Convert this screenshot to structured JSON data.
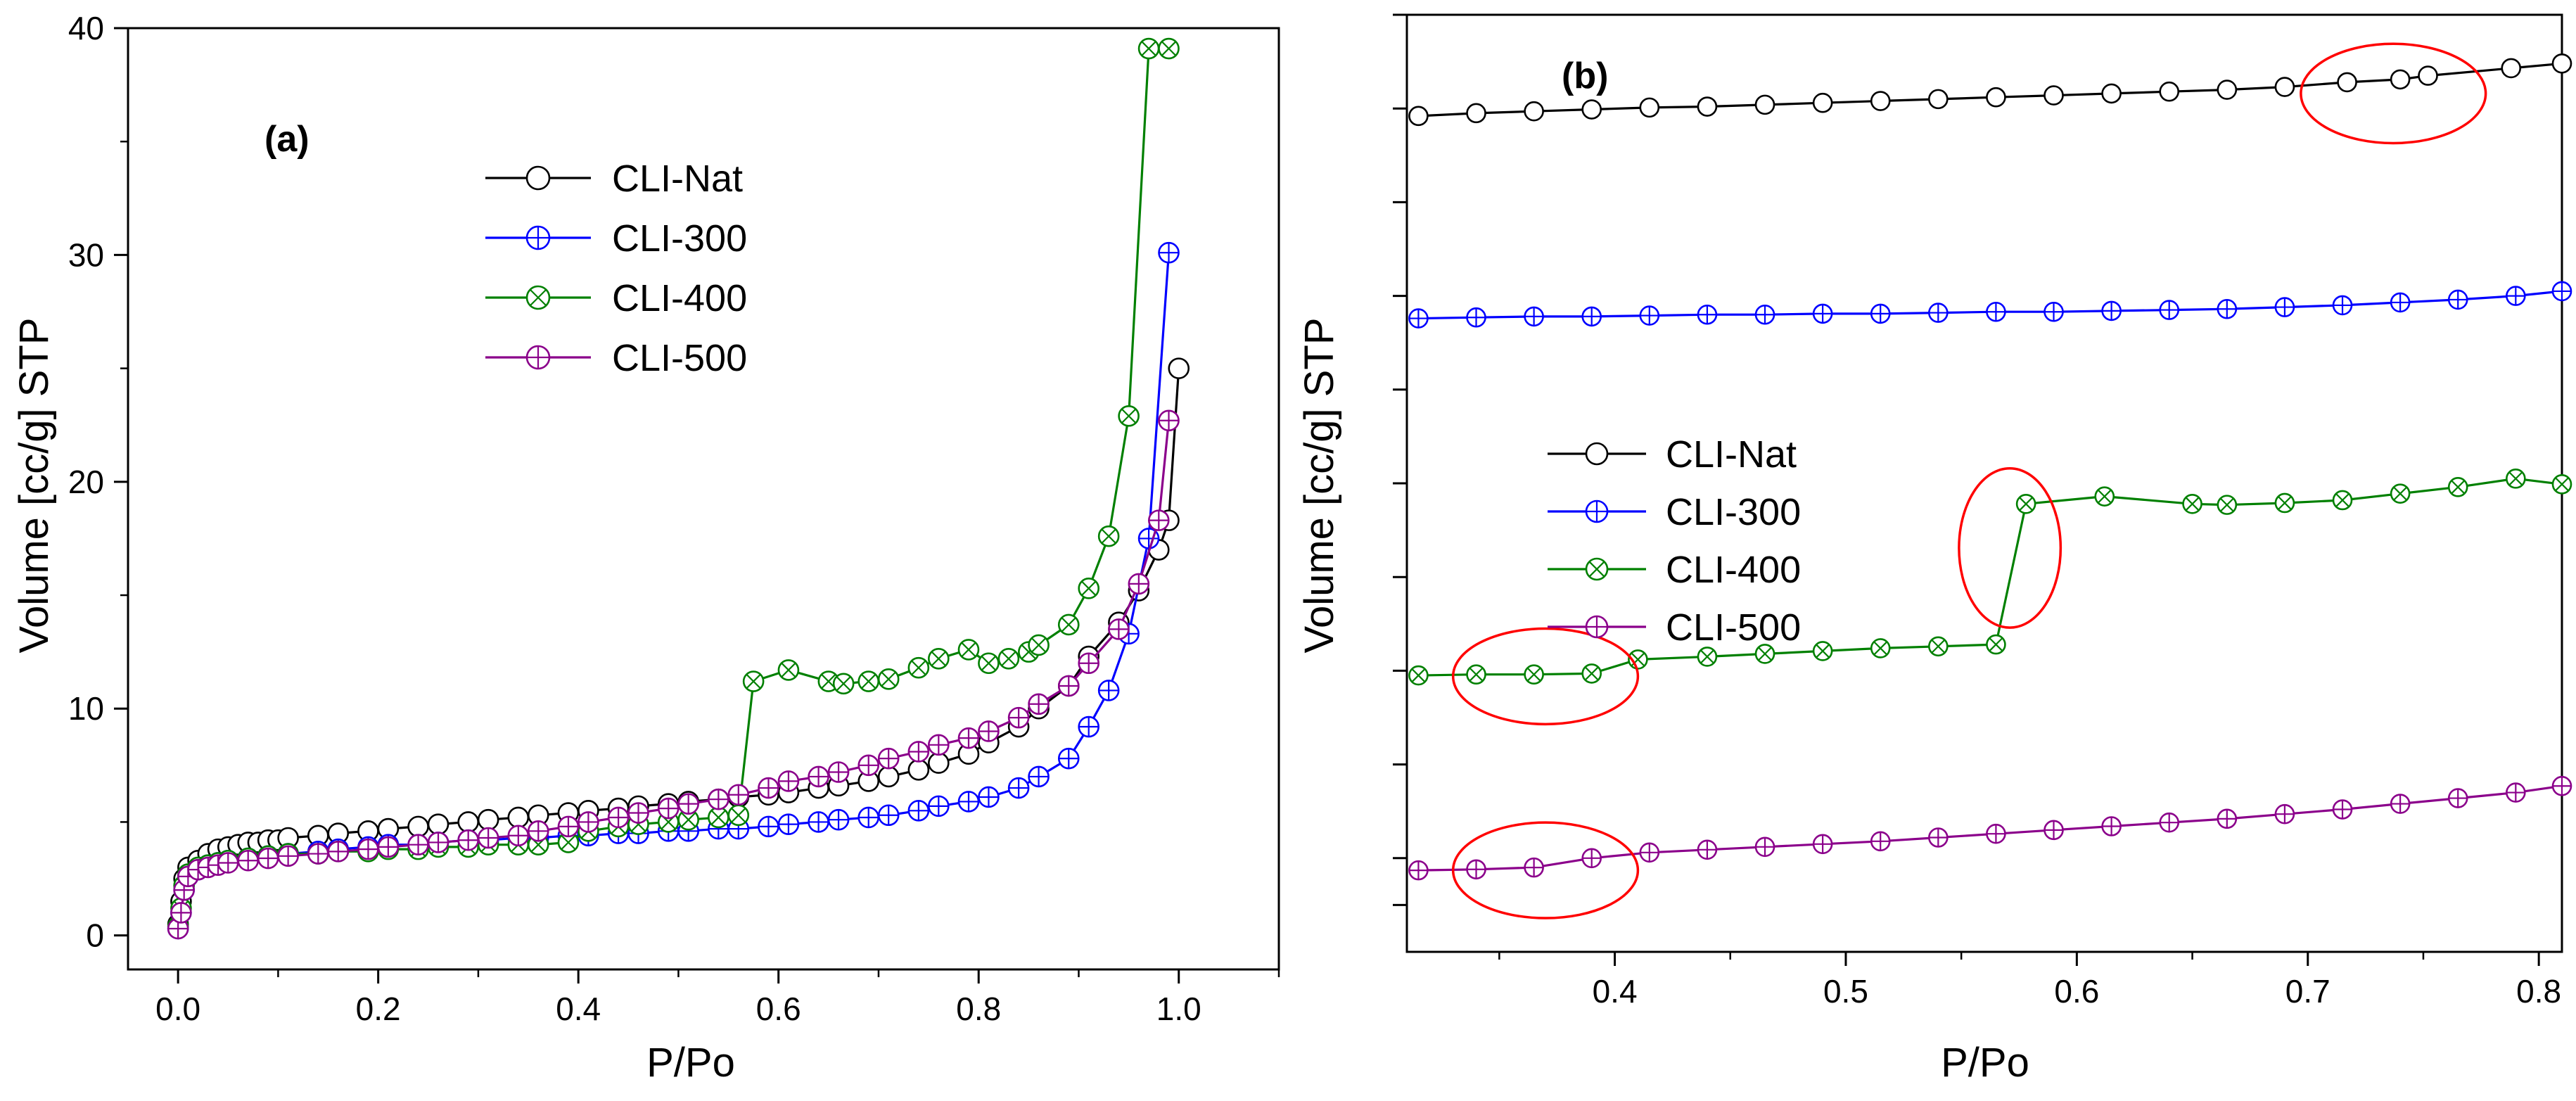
{
  "chart_data": [
    {
      "id": "a",
      "type": "line",
      "panel_label": "(a)",
      "xlabel": "P/Po",
      "ylabel": "Volume [cc/g] STP",
      "xlim": [
        -0.05,
        1.1
      ],
      "ylim": [
        -1.5,
        40
      ],
      "x_ticks": [
        0.0,
        0.2,
        0.4,
        0.6,
        0.8,
        1.0
      ],
      "x_tick_labels": [
        "0.0",
        "0.2",
        "0.4",
        "0.6",
        "0.8",
        "1.0"
      ],
      "y_ticks": [
        0,
        10,
        20,
        30,
        40
      ],
      "y_tick_labels": [
        "0",
        "10",
        "20",
        "30",
        "40"
      ],
      "grid": false,
      "legend_position": "upper-center",
      "series": [
        {
          "name": "CLI-Nat",
          "color": "#000000",
          "marker": "circle",
          "x": [
            0.0,
            0.003,
            0.006,
            0.01,
            0.02,
            0.03,
            0.04,
            0.05,
            0.06,
            0.07,
            0.08,
            0.09,
            0.1,
            0.11,
            0.14,
            0.16,
            0.19,
            0.21,
            0.24,
            0.26,
            0.29,
            0.31,
            0.34,
            0.36,
            0.39,
            0.41,
            0.44,
            0.46,
            0.49,
            0.51,
            0.54,
            0.56,
            0.59,
            0.61,
            0.64,
            0.66,
            0.69,
            0.71,
            0.74,
            0.76,
            0.79,
            0.81,
            0.84,
            0.86,
            0.89,
            0.91,
            0.94,
            0.96,
            0.98,
            0.99,
            1.0
          ],
          "y": [
            0.5,
            1.5,
            2.5,
            3.0,
            3.3,
            3.6,
            3.8,
            3.9,
            4.0,
            4.1,
            4.1,
            4.2,
            4.2,
            4.3,
            4.4,
            4.5,
            4.6,
            4.7,
            4.8,
            4.9,
            5.0,
            5.1,
            5.2,
            5.3,
            5.4,
            5.5,
            5.6,
            5.7,
            5.8,
            5.9,
            6.0,
            6.1,
            6.2,
            6.3,
            6.5,
            6.6,
            6.8,
            7.0,
            7.3,
            7.6,
            8.0,
            8.5,
            9.2,
            10.0,
            11.0,
            12.3,
            13.8,
            15.2,
            17.0,
            18.3,
            25.0
          ]
        },
        {
          "name": "CLI-300",
          "color": "#0000ff",
          "marker": "circle-cross",
          "x": [
            0.0,
            0.003,
            0.006,
            0.01,
            0.02,
            0.03,
            0.04,
            0.05,
            0.07,
            0.09,
            0.11,
            0.14,
            0.16,
            0.19,
            0.21,
            0.24,
            0.26,
            0.29,
            0.31,
            0.34,
            0.36,
            0.39,
            0.41,
            0.44,
            0.46,
            0.49,
            0.51,
            0.54,
            0.56,
            0.59,
            0.61,
            0.64,
            0.66,
            0.69,
            0.71,
            0.74,
            0.76,
            0.79,
            0.81,
            0.84,
            0.86,
            0.89,
            0.91,
            0.93,
            0.95,
            0.97,
            0.99
          ],
          "y": [
            0.3,
            1.0,
            2.0,
            2.6,
            2.9,
            3.1,
            3.2,
            3.3,
            3.4,
            3.5,
            3.6,
            3.7,
            3.8,
            3.9,
            4.0,
            4.0,
            4.1,
            4.2,
            4.2,
            4.3,
            4.3,
            4.4,
            4.4,
            4.5,
            4.5,
            4.6,
            4.6,
            4.7,
            4.7,
            4.8,
            4.9,
            5.0,
            5.1,
            5.2,
            5.3,
            5.5,
            5.7,
            5.9,
            6.1,
            6.5,
            7.0,
            7.8,
            9.2,
            10.8,
            13.3,
            17.5,
            30.1
          ]
        },
        {
          "name": "CLI-400",
          "color": "#008000",
          "marker": "circle-x",
          "x": [
            0.0,
            0.003,
            0.006,
            0.01,
            0.02,
            0.03,
            0.04,
            0.05,
            0.07,
            0.09,
            0.11,
            0.14,
            0.16,
            0.19,
            0.21,
            0.24,
            0.26,
            0.29,
            0.31,
            0.34,
            0.36,
            0.39,
            0.41,
            0.44,
            0.46,
            0.49,
            0.51,
            0.54,
            0.56,
            0.575,
            0.61,
            0.65,
            0.665,
            0.69,
            0.71,
            0.74,
            0.76,
            0.79,
            0.81,
            0.83,
            0.85,
            0.86,
            0.89,
            0.91,
            0.93,
            0.95,
            0.97,
            0.99
          ],
          "y": [
            0.4,
            1.2,
            2.2,
            2.7,
            3.0,
            3.1,
            3.2,
            3.3,
            3.4,
            3.5,
            3.6,
            3.6,
            3.7,
            3.7,
            3.8,
            3.8,
            3.9,
            3.9,
            4.0,
            4.0,
            4.0,
            4.1,
            4.6,
            4.8,
            4.9,
            5.0,
            5.1,
            5.2,
            5.3,
            11.2,
            11.7,
            11.2,
            11.1,
            11.2,
            11.3,
            11.8,
            12.2,
            12.6,
            12.0,
            12.2,
            12.5,
            12.8,
            13.7,
            15.3,
            17.6,
            22.9,
            39.1,
            39.1
          ]
        },
        {
          "name": "CLI-500",
          "color": "#8b008b",
          "marker": "circle-cross",
          "x": [
            0.0,
            0.003,
            0.006,
            0.01,
            0.02,
            0.03,
            0.04,
            0.05,
            0.07,
            0.09,
            0.11,
            0.14,
            0.16,
            0.19,
            0.21,
            0.24,
            0.26,
            0.29,
            0.31,
            0.34,
            0.36,
            0.39,
            0.41,
            0.44,
            0.46,
            0.49,
            0.51,
            0.54,
            0.56,
            0.59,
            0.61,
            0.64,
            0.66,
            0.69,
            0.71,
            0.74,
            0.76,
            0.79,
            0.81,
            0.84,
            0.86,
            0.89,
            0.91,
            0.94,
            0.96,
            0.98,
            0.99
          ],
          "y": [
            0.3,
            1.0,
            2.0,
            2.6,
            2.9,
            3.0,
            3.1,
            3.2,
            3.3,
            3.4,
            3.5,
            3.6,
            3.7,
            3.8,
            3.9,
            4.0,
            4.1,
            4.2,
            4.3,
            4.4,
            4.6,
            4.8,
            5.0,
            5.2,
            5.4,
            5.6,
            5.8,
            6.0,
            6.2,
            6.5,
            6.8,
            7.0,
            7.2,
            7.5,
            7.8,
            8.1,
            8.4,
            8.7,
            9.0,
            9.6,
            10.2,
            11.0,
            12.0,
            13.5,
            15.5,
            18.3,
            22.7
          ]
        }
      ]
    },
    {
      "id": "b",
      "type": "line",
      "panel_label": "(b)",
      "xlabel": "P/Po",
      "ylabel": "Volume [cc/g] STP",
      "xlim": [
        0.31,
        0.81
      ],
      "ylim": [
        0,
        10
      ],
      "x_ticks": [
        0.4,
        0.5,
        0.6,
        0.7,
        0.8
      ],
      "x_tick_labels": [
        "0.4",
        "0.5",
        "0.6",
        "0.7",
        "0.8"
      ],
      "y_ticks": [
        0.5,
        1.0,
        2.0,
        3.0,
        4.0,
        5.0,
        6.0,
        7.0,
        8.0,
        9.0,
        10.0
      ],
      "y_tick_labels": [],
      "grid": false,
      "legend_position": "center-left",
      "annotations": [
        {
          "shape": "ellipse",
          "color": "#ff0000",
          "cx": 0.737,
          "cy": 9.16,
          "rx": 0.04,
          "ry": 0.53
        },
        {
          "shape": "ellipse",
          "color": "#ff0000",
          "cx": 0.571,
          "cy": 4.31,
          "rx": 0.022,
          "ry": 0.85
        },
        {
          "shape": "ellipse",
          "color": "#ff0000",
          "cx": 0.37,
          "cy": 2.94,
          "rx": 0.04,
          "ry": 0.51
        },
        {
          "shape": "ellipse",
          "color": "#ff0000",
          "cx": 0.37,
          "cy": 0.87,
          "rx": 0.04,
          "ry": 0.51
        }
      ],
      "series": [
        {
          "name": "CLI-Nat",
          "color": "#000000",
          "marker": "circle",
          "x": [
            0.315,
            0.34,
            0.365,
            0.39,
            0.415,
            0.44,
            0.465,
            0.49,
            0.515,
            0.54,
            0.565,
            0.59,
            0.615,
            0.64,
            0.665,
            0.69,
            0.717,
            0.74,
            0.752,
            0.788,
            0.81
          ],
          "y": [
            8.92,
            8.95,
            8.97,
            8.99,
            9.01,
            9.02,
            9.04,
            9.06,
            9.08,
            9.1,
            9.12,
            9.14,
            9.16,
            9.18,
            9.2,
            9.23,
            9.28,
            9.31,
            9.35,
            9.43,
            9.48
          ]
        },
        {
          "name": "CLI-300",
          "color": "#0000ff",
          "marker": "circle-cross",
          "x": [
            0.315,
            0.34,
            0.365,
            0.39,
            0.415,
            0.44,
            0.465,
            0.49,
            0.515,
            0.54,
            0.565,
            0.59,
            0.615,
            0.64,
            0.665,
            0.69,
            0.715,
            0.74,
            0.765,
            0.79,
            0.81
          ],
          "y": [
            6.76,
            6.77,
            6.78,
            6.78,
            6.79,
            6.8,
            6.8,
            6.81,
            6.81,
            6.82,
            6.83,
            6.83,
            6.84,
            6.85,
            6.86,
            6.88,
            6.9,
            6.93,
            6.96,
            7.0,
            7.05
          ]
        },
        {
          "name": "CLI-400",
          "color": "#008000",
          "marker": "circle-x",
          "x": [
            0.315,
            0.34,
            0.365,
            0.39,
            0.41,
            0.44,
            0.465,
            0.49,
            0.515,
            0.54,
            0.565,
            0.578,
            0.612,
            0.65,
            0.665,
            0.69,
            0.715,
            0.74,
            0.765,
            0.79,
            0.81
          ],
          "y": [
            2.95,
            2.96,
            2.96,
            2.97,
            3.12,
            3.15,
            3.18,
            3.21,
            3.24,
            3.26,
            3.28,
            4.78,
            4.86,
            4.78,
            4.77,
            4.79,
            4.82,
            4.89,
            4.96,
            5.05,
            4.99
          ]
        },
        {
          "name": "CLI-500",
          "color": "#8b008b",
          "marker": "circle-cross",
          "x": [
            0.315,
            0.34,
            0.365,
            0.39,
            0.415,
            0.44,
            0.465,
            0.49,
            0.515,
            0.54,
            0.565,
            0.59,
            0.615,
            0.64,
            0.665,
            0.69,
            0.715,
            0.74,
            0.765,
            0.79,
            0.81
          ],
          "y": [
            0.87,
            0.88,
            0.9,
            1.0,
            1.06,
            1.09,
            1.12,
            1.15,
            1.18,
            1.22,
            1.26,
            1.3,
            1.34,
            1.38,
            1.42,
            1.47,
            1.52,
            1.58,
            1.64,
            1.7,
            1.77
          ]
        }
      ]
    }
  ]
}
